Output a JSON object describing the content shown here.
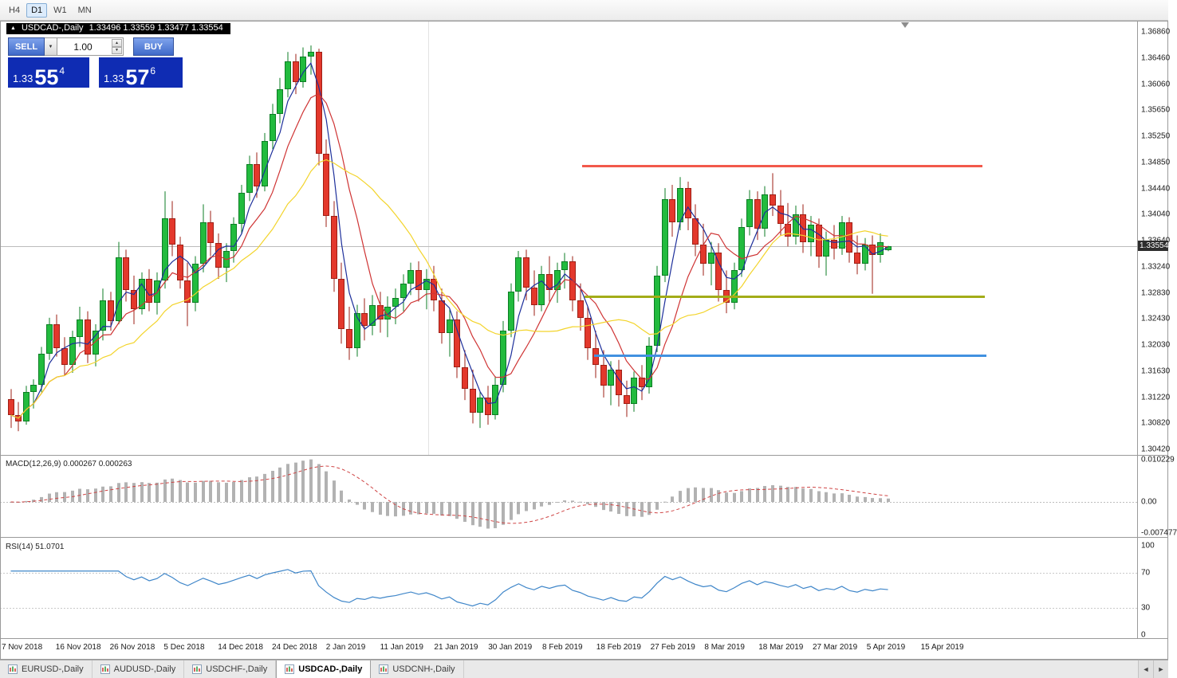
{
  "toolbar": {
    "timeframes": [
      {
        "label": "H4",
        "active": false
      },
      {
        "label": "D1",
        "active": true
      },
      {
        "label": "W1",
        "active": false
      },
      {
        "label": "MN",
        "active": false
      }
    ]
  },
  "chart": {
    "symbol_period": "USDCAD-,Daily",
    "ohlc": "1.33496 1.33559 1.33477 1.33554",
    "current_price": "1.33554",
    "price_axis_labels": [
      "1.36860",
      "1.36460",
      "1.36060",
      "1.35650",
      "1.35250",
      "1.34850",
      "1.34440",
      "1.34040",
      "1.33640",
      "1.33240",
      "1.32830",
      "1.32430",
      "1.32030",
      "1.31630",
      "1.31220",
      "1.30820",
      "1.30420"
    ],
    "time_axis_labels": [
      "7 Nov 2018",
      "16 Nov 2018",
      "26 Nov 2018",
      "5 Dec 2018",
      "14 Dec 2018",
      "24 Dec 2018",
      "2 Jan 2019",
      "11 Jan 2019",
      "21 Jan 2019",
      "30 Jan 2019",
      "8 Feb 2019",
      "18 Feb 2019",
      "27 Feb 2019",
      "8 Mar 2019",
      "18 Mar 2019",
      "27 Mar 2019",
      "5 Apr 2019",
      "15 Apr 2019"
    ]
  },
  "trade_panel": {
    "sell_label": "SELL",
    "buy_label": "BUY",
    "volume": "1.00",
    "sell_price": {
      "prefix": "1.33",
      "big": "55",
      "sup": "4"
    },
    "buy_price": {
      "prefix": "1.33",
      "big": "57",
      "sup": "6"
    }
  },
  "macd": {
    "label": "MACD(12,26,9) 0.000267 0.000263",
    "scale": [
      "0.010229",
      "0.00",
      "-0.007477"
    ]
  },
  "rsi": {
    "label": "RSI(14) 51.0701",
    "scale": [
      "100",
      "70",
      "30",
      "0"
    ],
    "levels": [
      70,
      30
    ]
  },
  "tabs": [
    {
      "label": "EURUSD-,Daily",
      "active": false
    },
    {
      "label": "AUDUSD-,Daily",
      "active": false
    },
    {
      "label": "USDCHF-,Daily",
      "active": false
    },
    {
      "label": "USDCAD-,Daily",
      "active": true
    },
    {
      "label": "USDCNH-,Daily",
      "active": false
    }
  ],
  "scroll_buttons": {
    "left": "◄",
    "right": "►"
  },
  "colors": {
    "candle_up": "#22bb3e",
    "candle_up_border": "#0c7d24",
    "candle_down": "#e3382c",
    "candle_down_border": "#9e1f15",
    "macd_histogram": "#b2b2b2",
    "macd_signal": "#cf4545",
    "rsi_line": "#3f86c9",
    "trade_button_blue": "#4b76d6",
    "price_panel_blue": "#0f2cb3"
  },
  "chart_data": {
    "type": "candlestick",
    "symbol": "USDCAD",
    "period": "Daily",
    "x_range": "7 Nov 2018 - 15 Apr 2019",
    "ylim": [
      1.3042,
      1.3686
    ],
    "last_ohlc": {
      "open": 1.33496,
      "high": 1.33559,
      "low": 1.33477,
      "close": 1.33554
    },
    "levels": [
      {
        "price": 1.348,
        "color": "#f2594b",
        "x1": 730,
        "x2": 1232
      },
      {
        "price": 1.3278,
        "color": "#a3ac18",
        "x1": 733,
        "x2": 1235
      },
      {
        "price": 1.3187,
        "color": "#4191e0",
        "x1": 745,
        "x2": 1237
      }
    ],
    "moving_averages": [
      {
        "period": 4,
        "color": "#1d2f9b"
      },
      {
        "period": 8,
        "color": "#cf3434"
      },
      {
        "period": 17,
        "color": "#f3d42b"
      }
    ],
    "macd_params": [
      12,
      26,
      9
    ],
    "rsi_period": 14,
    "candles": [
      [
        1.312,
        1.3135,
        1.3075,
        1.3095
      ],
      [
        1.3095,
        1.3115,
        1.307,
        1.3085
      ],
      [
        1.3085,
        1.314,
        1.308,
        1.313
      ],
      [
        1.313,
        1.315,
        1.3105,
        1.3142
      ],
      [
        1.3142,
        1.32,
        1.313,
        1.319
      ],
      [
        1.319,
        1.3245,
        1.318,
        1.3235
      ],
      [
        1.3235,
        1.325,
        1.3185,
        1.3198
      ],
      [
        1.3198,
        1.3215,
        1.3155,
        1.3172
      ],
      [
        1.3172,
        1.3225,
        1.316,
        1.3215
      ],
      [
        1.3215,
        1.3262,
        1.32,
        1.3242
      ],
      [
        1.3242,
        1.3255,
        1.3175,
        1.3188
      ],
      [
        1.3188,
        1.3235,
        1.317,
        1.3225
      ],
      [
        1.3225,
        1.329,
        1.321,
        1.3272
      ],
      [
        1.3272,
        1.3285,
        1.3225,
        1.324
      ],
      [
        1.324,
        1.3362,
        1.3235,
        1.3338
      ],
      [
        1.3338,
        1.335,
        1.327,
        1.3288
      ],
      [
        1.3288,
        1.331,
        1.3235,
        1.3258
      ],
      [
        1.3258,
        1.3315,
        1.325,
        1.3305
      ],
      [
        1.3305,
        1.332,
        1.3255,
        1.3268
      ],
      [
        1.3268,
        1.3315,
        1.325,
        1.3302
      ],
      [
        1.3302,
        1.344,
        1.329,
        1.3398
      ],
      [
        1.3398,
        1.3425,
        1.334,
        1.3358
      ],
      [
        1.3358,
        1.337,
        1.329,
        1.3302
      ],
      [
        1.3302,
        1.333,
        1.3232,
        1.3268
      ],
      [
        1.3268,
        1.334,
        1.3255,
        1.3328
      ],
      [
        1.3328,
        1.342,
        1.3315,
        1.3392
      ],
      [
        1.3392,
        1.341,
        1.334,
        1.336
      ],
      [
        1.336,
        1.3375,
        1.3305,
        1.3322
      ],
      [
        1.3322,
        1.336,
        1.33,
        1.3348
      ],
      [
        1.3348,
        1.34,
        1.333,
        1.339
      ],
      [
        1.339,
        1.345,
        1.3375,
        1.3438
      ],
      [
        1.3438,
        1.3495,
        1.3425,
        1.3482
      ],
      [
        1.3482,
        1.35,
        1.343,
        1.3448
      ],
      [
        1.3448,
        1.353,
        1.344,
        1.3518
      ],
      [
        1.3518,
        1.3575,
        1.3505,
        1.356
      ],
      [
        1.356,
        1.3615,
        1.3545,
        1.3598
      ],
      [
        1.3598,
        1.3655,
        1.3585,
        1.364
      ],
      [
        1.364,
        1.3652,
        1.359,
        1.3608
      ],
      [
        1.3608,
        1.3662,
        1.36,
        1.3648
      ],
      [
        1.3648,
        1.3665,
        1.362,
        1.3655
      ],
      [
        1.3655,
        1.366,
        1.348,
        1.3498
      ],
      [
        1.3498,
        1.352,
        1.3385,
        1.3402
      ],
      [
        1.3402,
        1.3425,
        1.3285,
        1.3305
      ],
      [
        1.3305,
        1.333,
        1.3205,
        1.3228
      ],
      [
        1.3228,
        1.3262,
        1.318,
        1.3198
      ],
      [
        1.3198,
        1.3265,
        1.3185,
        1.3252
      ],
      [
        1.3252,
        1.3275,
        1.321,
        1.3232
      ],
      [
        1.3232,
        1.328,
        1.3218,
        1.3265
      ],
      [
        1.3265,
        1.3285,
        1.3222,
        1.3242
      ],
      [
        1.3242,
        1.3278,
        1.3215,
        1.3262
      ],
      [
        1.3262,
        1.329,
        1.3235,
        1.3275
      ],
      [
        1.3275,
        1.3312,
        1.3255,
        1.3298
      ],
      [
        1.3298,
        1.333,
        1.328,
        1.3318
      ],
      [
        1.3318,
        1.3332,
        1.327,
        1.3288
      ],
      [
        1.3288,
        1.332,
        1.3258,
        1.3305
      ],
      [
        1.3305,
        1.3325,
        1.3255,
        1.3272
      ],
      [
        1.3272,
        1.329,
        1.3205,
        1.3222
      ],
      [
        1.3222,
        1.3258,
        1.3185,
        1.3242
      ],
      [
        1.3242,
        1.3255,
        1.3152,
        1.3168
      ],
      [
        1.3168,
        1.3195,
        1.3118,
        1.3135
      ],
      [
        1.3135,
        1.3165,
        1.3082,
        1.3098
      ],
      [
        1.3098,
        1.3132,
        1.3075,
        1.3122
      ],
      [
        1.3122,
        1.314,
        1.308,
        1.3095
      ],
      [
        1.3095,
        1.3155,
        1.3088,
        1.3142
      ],
      [
        1.3142,
        1.324,
        1.313,
        1.3225
      ],
      [
        1.3225,
        1.3298,
        1.3215,
        1.3285
      ],
      [
        1.3285,
        1.3348,
        1.327,
        1.3338
      ],
      [
        1.3338,
        1.335,
        1.3272,
        1.3292
      ],
      [
        1.3292,
        1.3318,
        1.3248,
        1.3265
      ],
      [
        1.3265,
        1.3325,
        1.3255,
        1.3312
      ],
      [
        1.3312,
        1.334,
        1.327,
        1.3288
      ],
      [
        1.3288,
        1.333,
        1.3268,
        1.3318
      ],
      [
        1.3318,
        1.3345,
        1.329,
        1.3332
      ],
      [
        1.3332,
        1.334,
        1.3255,
        1.3272
      ],
      [
        1.3272,
        1.3298,
        1.3225,
        1.3245
      ],
      [
        1.3245,
        1.3262,
        1.318,
        1.3198
      ],
      [
        1.3198,
        1.3225,
        1.3152,
        1.3172
      ],
      [
        1.3172,
        1.3195,
        1.3122,
        1.314
      ],
      [
        1.314,
        1.3178,
        1.311,
        1.3165
      ],
      [
        1.3165,
        1.318,
        1.3108,
        1.3125
      ],
      [
        1.3125,
        1.3148,
        1.3092,
        1.3112
      ],
      [
        1.3112,
        1.3162,
        1.31,
        1.3152
      ],
      [
        1.3152,
        1.3172,
        1.3118,
        1.3138
      ],
      [
        1.3138,
        1.3215,
        1.3128,
        1.3202
      ],
      [
        1.3202,
        1.3325,
        1.3192,
        1.331
      ],
      [
        1.331,
        1.3445,
        1.33,
        1.3428
      ],
      [
        1.3428,
        1.345,
        1.337,
        1.3392
      ],
      [
        1.3392,
        1.3462,
        1.338,
        1.3445
      ],
      [
        1.3445,
        1.3455,
        1.338,
        1.3398
      ],
      [
        1.3398,
        1.342,
        1.334,
        1.3358
      ],
      [
        1.3358,
        1.339,
        1.331,
        1.3328
      ],
      [
        1.3328,
        1.3362,
        1.3295,
        1.3345
      ],
      [
        1.3345,
        1.336,
        1.327,
        1.3288
      ],
      [
        1.3288,
        1.3318,
        1.3252,
        1.3268
      ],
      [
        1.3268,
        1.333,
        1.3258,
        1.3318
      ],
      [
        1.3318,
        1.3398,
        1.3308,
        1.3385
      ],
      [
        1.3385,
        1.3442,
        1.3372,
        1.3428
      ],
      [
        1.3428,
        1.344,
        1.3365,
        1.3382
      ],
      [
        1.3382,
        1.3448,
        1.337,
        1.3435
      ],
      [
        1.3435,
        1.3468,
        1.3402,
        1.3418
      ],
      [
        1.3418,
        1.3442,
        1.3372,
        1.339
      ],
      [
        1.339,
        1.3422,
        1.3355,
        1.337
      ],
      [
        1.337,
        1.3418,
        1.3358,
        1.3405
      ],
      [
        1.3405,
        1.342,
        1.3345,
        1.3362
      ],
      [
        1.3362,
        1.3402,
        1.334,
        1.3388
      ],
      [
        1.3388,
        1.3398,
        1.3322,
        1.334
      ],
      [
        1.334,
        1.3378,
        1.331,
        1.3365
      ],
      [
        1.3365,
        1.3388,
        1.3335,
        1.3352
      ],
      [
        1.3352,
        1.3402,
        1.3342,
        1.3392
      ],
      [
        1.3392,
        1.34,
        1.333,
        1.3345
      ],
      [
        1.3345,
        1.3372,
        1.3312,
        1.3328
      ],
      [
        1.3328,
        1.3368,
        1.3318,
        1.3358
      ],
      [
        1.3358,
        1.3372,
        1.3282,
        1.3342
      ],
      [
        1.3342,
        1.3375,
        1.333,
        1.3362
      ],
      [
        1.33496,
        1.33559,
        1.33477,
        1.33554
      ]
    ]
  }
}
